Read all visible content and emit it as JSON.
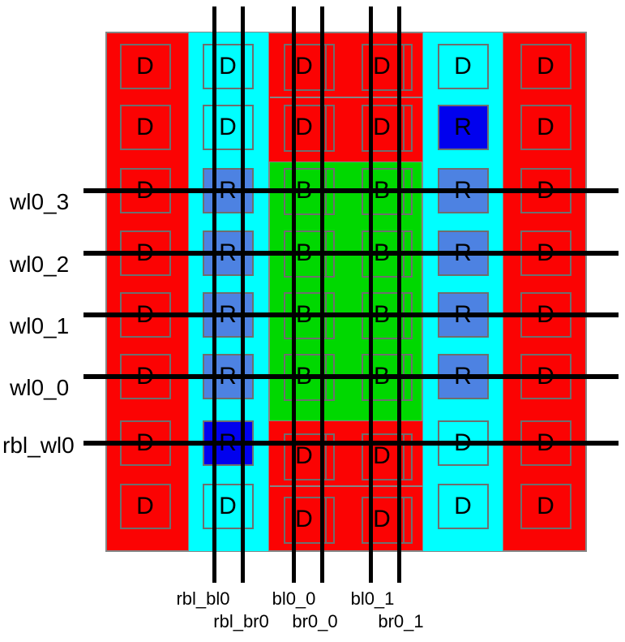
{
  "diagram": {
    "kind": "memory-array-layout",
    "colors": {
      "background": "#ffffff",
      "dummy_red": "#fb0303",
      "strap_cyan": "#00ffff",
      "bitcell_green": "#00d800",
      "replica_blue": "#4d82e2",
      "replica_dark_blue": "#0101ee",
      "cell_outline": "#6e6e6e",
      "region_border": "#858585",
      "wire_black": "#000000",
      "label_text": "#000000"
    },
    "wordlines": [
      {
        "label": "wl0_3"
      },
      {
        "label": "wl0_2"
      },
      {
        "label": "wl0_1"
      },
      {
        "label": "wl0_0"
      },
      {
        "label": "rbl_wl0"
      }
    ],
    "bitlines": [
      {
        "label": "rbl_bl0"
      },
      {
        "label": "rbl_br0"
      },
      {
        "label": "bl0_0"
      },
      {
        "label": "br0_0"
      },
      {
        "label": "bl0_1"
      },
      {
        "label": "br0_1"
      }
    ],
    "grid": {
      "columns": 6,
      "row_count": 8,
      "rows": [
        {
          "cells": [
            {
              "letter": "D",
              "fill": "none"
            },
            {
              "letter": "D",
              "fill": "none"
            },
            {
              "letter": "D",
              "fill": "none"
            },
            {
              "letter": "D",
              "fill": "none"
            },
            {
              "letter": "D",
              "fill": "none"
            },
            {
              "letter": "D",
              "fill": "none"
            }
          ]
        },
        {
          "cells": [
            {
              "letter": "D",
              "fill": "none"
            },
            {
              "letter": "D",
              "fill": "none"
            },
            {
              "letter": "D",
              "fill": "none"
            },
            {
              "letter": "D",
              "fill": "none"
            },
            {
              "letter": "R",
              "fill": "replica_dark_blue"
            },
            {
              "letter": "D",
              "fill": "none"
            }
          ]
        },
        {
          "cells": [
            {
              "letter": "D",
              "fill": "none"
            },
            {
              "letter": "R",
              "fill": "replica_blue"
            },
            {
              "letter": "B",
              "fill": "none"
            },
            {
              "letter": "B",
              "fill": "none"
            },
            {
              "letter": "R",
              "fill": "replica_blue"
            },
            {
              "letter": "D",
              "fill": "none"
            }
          ]
        },
        {
          "cells": [
            {
              "letter": "D",
              "fill": "none"
            },
            {
              "letter": "R",
              "fill": "replica_blue"
            },
            {
              "letter": "B",
              "fill": "none"
            },
            {
              "letter": "B",
              "fill": "none"
            },
            {
              "letter": "R",
              "fill": "replica_blue"
            },
            {
              "letter": "D",
              "fill": "none"
            }
          ]
        },
        {
          "cells": [
            {
              "letter": "D",
              "fill": "none"
            },
            {
              "letter": "R",
              "fill": "replica_blue"
            },
            {
              "letter": "B",
              "fill": "none"
            },
            {
              "letter": "B",
              "fill": "none"
            },
            {
              "letter": "R",
              "fill": "replica_blue"
            },
            {
              "letter": "D",
              "fill": "none"
            }
          ]
        },
        {
          "cells": [
            {
              "letter": "D",
              "fill": "none"
            },
            {
              "letter": "R",
              "fill": "replica_blue"
            },
            {
              "letter": "B",
              "fill": "none"
            },
            {
              "letter": "B",
              "fill": "none"
            },
            {
              "letter": "R",
              "fill": "replica_blue"
            },
            {
              "letter": "D",
              "fill": "none"
            }
          ]
        },
        {
          "cells": [
            {
              "letter": "D",
              "fill": "none"
            },
            {
              "letter": "R",
              "fill": "replica_dark_blue"
            },
            {
              "letter": "D",
              "fill": "none"
            },
            {
              "letter": "D",
              "fill": "none"
            },
            {
              "letter": "D",
              "fill": "none"
            },
            {
              "letter": "D",
              "fill": "none"
            }
          ]
        },
        {
          "cells": [
            {
              "letter": "D",
              "fill": "none"
            },
            {
              "letter": "D",
              "fill": "none"
            },
            {
              "letter": "D",
              "fill": "none"
            },
            {
              "letter": "D",
              "fill": "none"
            },
            {
              "letter": "D",
              "fill": "none"
            },
            {
              "letter": "D",
              "fill": "none"
            }
          ]
        }
      ]
    }
  }
}
